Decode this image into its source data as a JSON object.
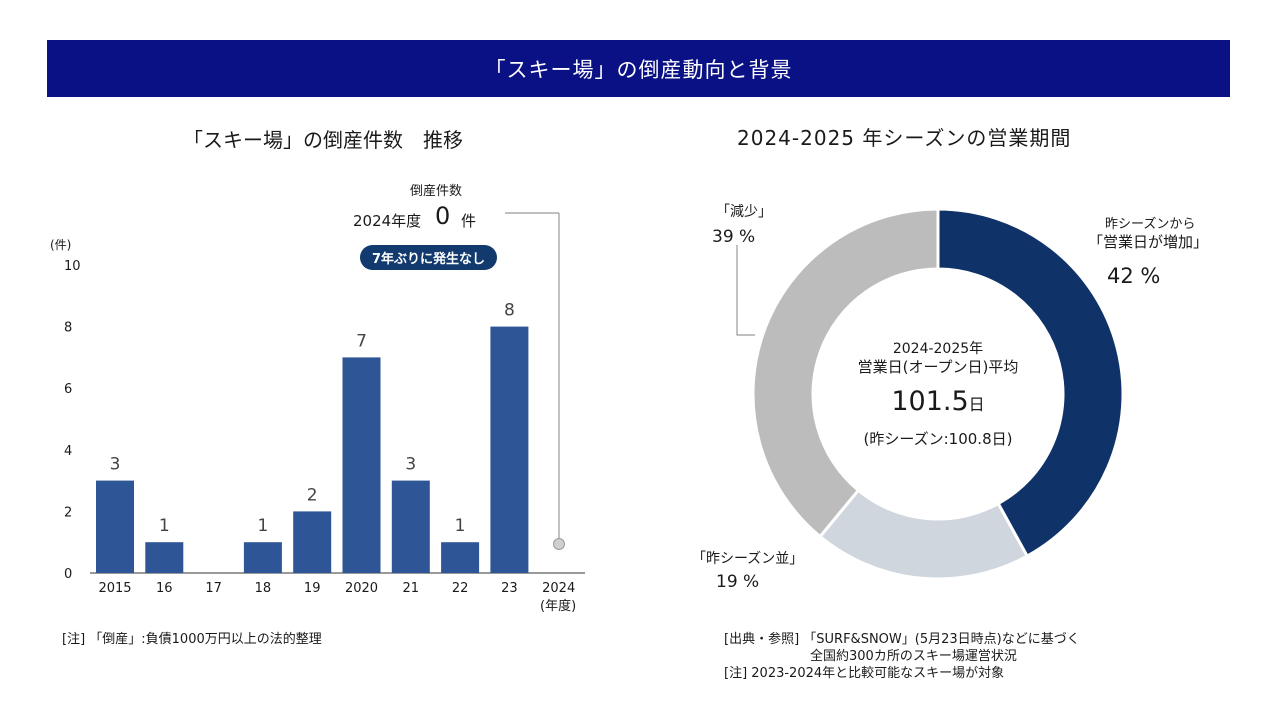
{
  "header": {
    "title": "「スキー場」の倒産動向と背景"
  },
  "left": {
    "title": "「スキー場」の倒産件数　推移",
    "callout_label": "倒産件数",
    "callout_year": "2024年度",
    "callout_value": "0",
    "callout_unit": "件",
    "pill": "7年ぶりに発生なし",
    "note": "[注] 「倒産」:負債1000万円以上の法的整理"
  },
  "chart_data": [
    {
      "type": "bar",
      "title": "「スキー場」の倒産件数　推移",
      "ylabel": "(件)",
      "xlabel": "(年度)",
      "categories": [
        "2015",
        "16",
        "17",
        "18",
        "19",
        "2020",
        "21",
        "22",
        "23",
        "2024"
      ],
      "values": [
        3,
        1,
        0,
        1,
        2,
        7,
        3,
        1,
        8,
        0
      ],
      "data_labels": [
        "3",
        "1",
        "",
        "1",
        "2",
        "7",
        "3",
        "1",
        "8",
        ""
      ],
      "ylim": [
        0,
        10
      ],
      "yticks": [
        0,
        2,
        4,
        6,
        8,
        10
      ],
      "grid": false,
      "color": "#2e5596"
    },
    {
      "type": "pie",
      "title": "2024-2025 年シーズンの営業期間",
      "slices": [
        {
          "label_top": "昨シーズンから",
          "label": "「営業日が増加」",
          "value": 42,
          "value_text": "42 %",
          "color": "#0f3368"
        },
        {
          "label": "「昨シーズン並」",
          "value": 19,
          "value_text": "19 %",
          "color": "#cfd6de"
        },
        {
          "label": "「減少」",
          "value": 39,
          "value_text": "39 %",
          "color": "#bcbcbc"
        }
      ]
    }
  ],
  "right": {
    "title": "2024-2025 年シーズンの営業期間",
    "center_line1": "2024-2025年",
    "center_line2": "営業日(オープン日)平均",
    "center_value": "101.5",
    "center_unit": "日",
    "center_prev": "(昨シーズン:100.8日)",
    "source_line1": "[出典・参照] 「SURF&SNOW」(5月23日時点)などに基づく",
    "source_line2": "全国約300カ所のスキー場運営状況",
    "source_line3": "[注] 2023-2024年と比較可能なスキー場が対象"
  }
}
